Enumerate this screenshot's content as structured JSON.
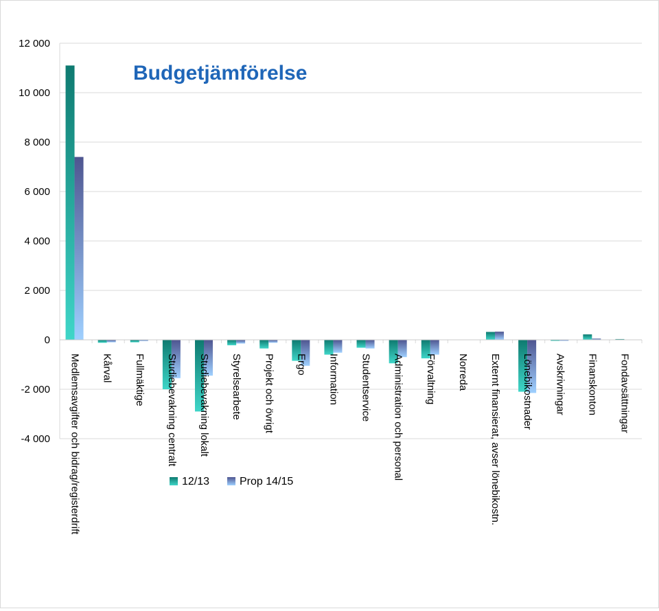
{
  "chart_data": {
    "type": "bar",
    "title": "Budgetjämförelse",
    "xlabel": "",
    "ylabel": "",
    "ylim": [
      -4000,
      12000
    ],
    "yticks": [
      12000,
      10000,
      8000,
      6000,
      4000,
      2000,
      0,
      -2000,
      -4000
    ],
    "ytick_labels": [
      "12 000",
      "10 000",
      "8 000",
      "6 000",
      "4 000",
      "2 000",
      "0",
      "-2 000",
      "-4 000"
    ],
    "grid": true,
    "legend_position": "bottom-center",
    "categories": [
      "Medlemsavgifter och bidrag/registerdrift",
      "Kårval",
      "Fullmäktige",
      "Studiebevakning centralt",
      "Studiebevakning lokalt",
      "Styrelsearbete",
      "Projekt och övrigt",
      "Ergo",
      "Information",
      "Studentservice",
      "Administration och personal",
      "Förvaltning",
      "Norreda",
      "Externt finansierat, avser lönebikostn.",
      "Lönebikostnader",
      "Avskrivningar",
      "Finanskonton",
      "Fondavsättningar"
    ],
    "series": [
      {
        "name": "12/13",
        "color_dark": "#0e7a70",
        "color_light": "#3fd6c8",
        "values": [
          11100,
          -120,
          -100,
          -2000,
          -2900,
          -220,
          -350,
          -850,
          -600,
          -320,
          -950,
          -750,
          0,
          320,
          -2100,
          -30,
          220,
          30
        ]
      },
      {
        "name": "Prop 14/15",
        "color_dark": "#4e5590",
        "color_light": "#9fd0ff",
        "values": [
          7400,
          -100,
          -50,
          -1550,
          -1450,
          -150,
          -120,
          -1050,
          -520,
          -350,
          -700,
          -600,
          0,
          330,
          -2150,
          -20,
          50,
          0
        ]
      }
    ]
  }
}
